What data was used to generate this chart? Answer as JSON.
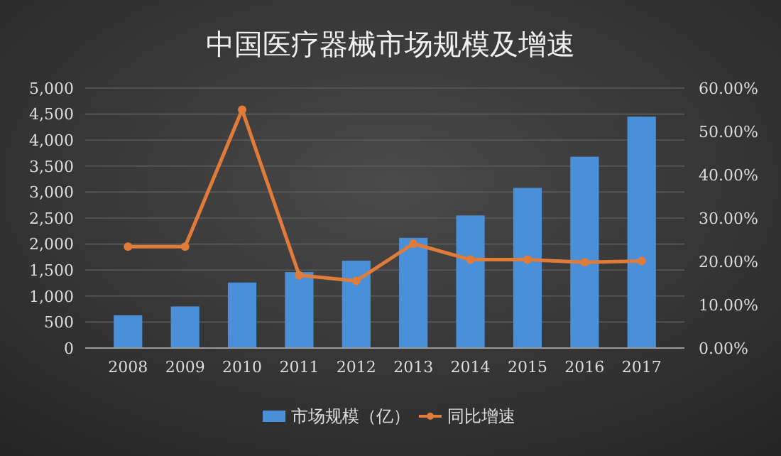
{
  "chart_data": {
    "type": "bar",
    "title": "中国医疗器械市场规模及增速",
    "categories": [
      "2008",
      "2009",
      "2010",
      "2011",
      "2012",
      "2013",
      "2014",
      "2015",
      "2016",
      "2017"
    ],
    "series": [
      {
        "name": "市场规模（亿）",
        "color": "#4a90d9",
        "values": [
          630,
          800,
          1260,
          1460,
          1680,
          2120,
          2550,
          3080,
          3680,
          4450
        ]
      },
      {
        "name": "同比增速",
        "type": "line",
        "axis": "y2",
        "color": "#e07b39",
        "marker": "circle",
        "values": [
          23.4,
          23.4,
          55.0,
          16.8,
          15.5,
          24.1,
          20.4,
          20.4,
          19.8,
          20.1
        ]
      }
    ],
    "ylim": [
      0,
      5000
    ],
    "yticks": [
      0,
      500,
      {
        "value": 1000,
        "label": "1,000"
      },
      {
        "value": 1500,
        "label": "1,500"
      },
      {
        "value": 2000,
        "label": "2,000"
      },
      {
        "value": 2500,
        "label": "2,500"
      },
      {
        "value": 3000,
        "label": "3,000"
      },
      {
        "value": 3500,
        "label": "3,500"
      },
      {
        "value": 4000,
        "label": "4,000"
      },
      {
        "value": 4500,
        "label": "4,500"
      },
      {
        "value": 5000,
        "label": "5,000"
      }
    ],
    "y2lim": [
      0,
      60
    ],
    "y2ticks": [
      {
        "value": 0,
        "label": "0.00%"
      },
      {
        "value": 10,
        "label": "10.00%"
      },
      {
        "value": 20,
        "label": "20.00%"
      },
      {
        "value": 30,
        "label": "30.00%"
      },
      {
        "value": 40,
        "label": "40.00%"
      },
      {
        "value": 50,
        "label": "50.00%"
      },
      {
        "value": 60,
        "label": "60.00%"
      }
    ],
    "grid": "y",
    "legend": "bottom"
  }
}
